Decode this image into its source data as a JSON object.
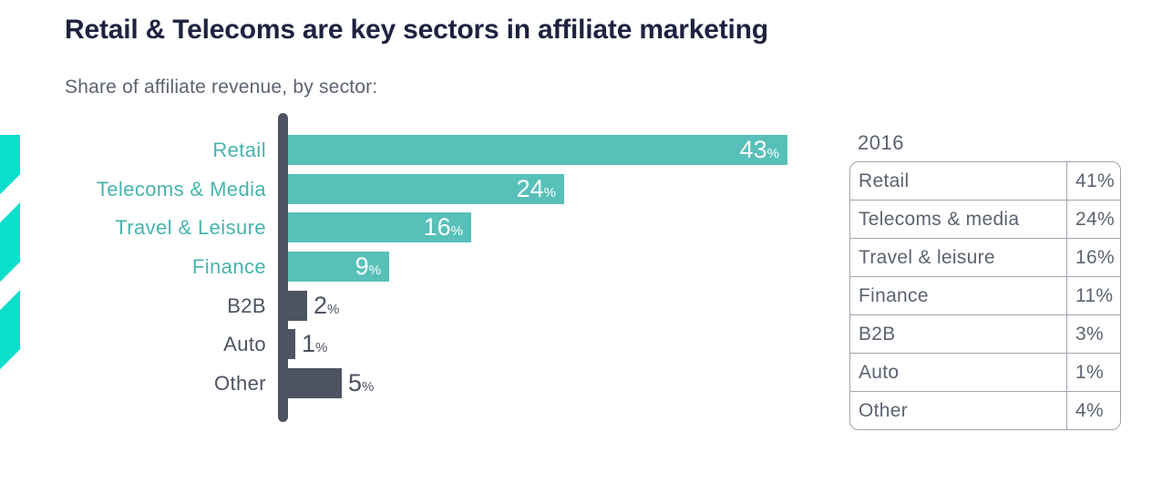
{
  "title": "Retail & Telecoms are key sectors in affiliate marketing",
  "subtitle": "Share of affiliate revenue, by sector:",
  "chart_data": {
    "type": "bar",
    "orientation": "horizontal",
    "title": "Share of affiliate revenue, by sector",
    "unit": "%",
    "categories": [
      "Retail",
      "Telecoms & Media",
      "Travel & Leisure",
      "Finance",
      "B2B",
      "Auto",
      "Other"
    ],
    "values": [
      43,
      24,
      16,
      9,
      2,
      1,
      5
    ],
    "groups": [
      "teal",
      "teal",
      "teal",
      "teal",
      "dark",
      "dark",
      "dark"
    ],
    "xlim": [
      0,
      45
    ],
    "grid": false,
    "legend": false,
    "axis_style": "single rounded vertical baseline, no gridlines, value labels on bars"
  },
  "table": {
    "header": "2016",
    "rows": [
      {
        "label": "Retail",
        "value": "41%"
      },
      {
        "label": "Telecoms & media",
        "value": "24%"
      },
      {
        "label": "Travel & leisure",
        "value": "16%"
      },
      {
        "label": "Finance",
        "value": "11%"
      },
      {
        "label": "B2B",
        "value": "3%"
      },
      {
        "label": "Auto",
        "value": "1%"
      },
      {
        "label": "Other",
        "value": "4%"
      }
    ]
  },
  "colors": {
    "accent_stripe": "#0bdfce",
    "bar_teal": "#57c0b9",
    "bar_dark": "#4d5362",
    "teal_label_text": "#47b4ae",
    "title_text": "#1e2240",
    "muted_text": "#5c6370",
    "table_border": "#9fa5ae",
    "value_text_inside_bar": "#ffffff"
  }
}
